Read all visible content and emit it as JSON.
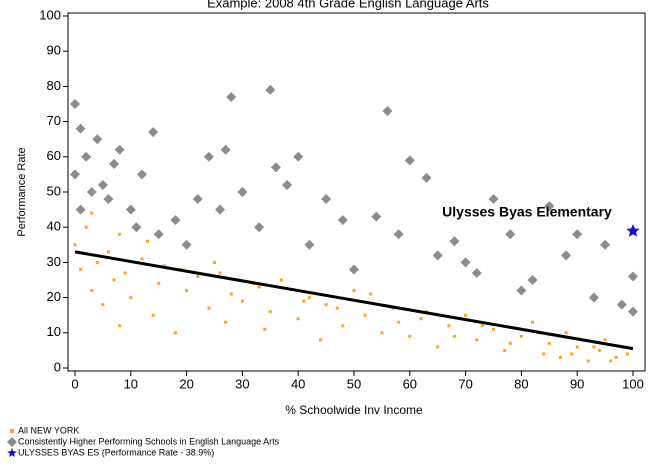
{
  "chart_data": {
    "type": "scatter",
    "title": "Example: 2008 4th Grade English Language Arts",
    "xlabel": "% Schoolwide Inv Income",
    "ylabel": "Performance Rate",
    "xlim": [
      0,
      100
    ],
    "ylim": [
      0,
      100
    ],
    "xticks": [
      0,
      10,
      20,
      30,
      40,
      50,
      60,
      70,
      80,
      90,
      100
    ],
    "yticks": [
      0,
      10,
      20,
      30,
      40,
      50,
      60,
      70,
      80,
      90,
      100
    ],
    "annotation": "Ulysses Byas Elementary",
    "series": [
      {
        "name": "All NEW YORK",
        "color": "#f5a623",
        "marker": "square",
        "x": [
          0,
          1,
          2,
          3,
          4,
          5,
          6,
          7,
          8,
          9,
          10,
          12,
          14,
          15,
          16,
          18,
          20,
          22,
          24,
          25,
          27,
          28,
          30,
          32,
          34,
          35,
          37,
          40,
          42,
          44,
          45,
          48,
          50,
          52,
          55,
          57,
          60,
          62,
          65,
          67,
          70,
          72,
          75,
          77,
          80,
          82,
          84,
          85,
          87,
          88,
          90,
          92,
          94,
          95,
          97,
          99,
          3,
          8,
          13,
          19,
          26,
          33,
          41,
          47,
          53,
          58,
          63,
          68,
          73,
          78,
          83,
          89,
          93,
          96
        ],
        "values": [
          35,
          28,
          40,
          22,
          30,
          18,
          33,
          25,
          12,
          27,
          20,
          31,
          15,
          24,
          29,
          10,
          22,
          26,
          17,
          30,
          13,
          21,
          19,
          24,
          11,
          16,
          25,
          14,
          20,
          8,
          18,
          12,
          22,
          15,
          10,
          17,
          9,
          14,
          6,
          12,
          15,
          8,
          11,
          5,
          9,
          13,
          4,
          7,
          3,
          10,
          6,
          2,
          5,
          8,
          3,
          4,
          44,
          38,
          36,
          28,
          27,
          23,
          19,
          17,
          21,
          13,
          16,
          9,
          12,
          7,
          10,
          4,
          6,
          2
        ]
      },
      {
        "name": "Consistently Higher Performing Schools in English Language Arts",
        "color": "#8c8c8c",
        "marker": "diamond",
        "x": [
          0,
          0,
          1,
          1,
          2,
          3,
          4,
          5,
          6,
          7,
          8,
          10,
          11,
          12,
          14,
          15,
          18,
          20,
          22,
          24,
          26,
          27,
          28,
          30,
          33,
          35,
          36,
          38,
          40,
          42,
          45,
          48,
          50,
          54,
          56,
          58,
          60,
          63,
          65,
          68,
          70,
          72,
          75,
          78,
          80,
          82,
          85,
          88,
          90,
          93,
          95,
          98,
          100,
          100
        ],
        "values": [
          75,
          55,
          68,
          45,
          60,
          50,
          65,
          52,
          48,
          58,
          62,
          45,
          40,
          55,
          67,
          38,
          42,
          35,
          48,
          60,
          45,
          62,
          77,
          50,
          40,
          79,
          57,
          52,
          60,
          35,
          48,
          42,
          28,
          43,
          73,
          38,
          59,
          54,
          32,
          36,
          30,
          27,
          48,
          38,
          22,
          25,
          46,
          32,
          38,
          20,
          35,
          18,
          26,
          16
        ]
      },
      {
        "name": "ULYSSES BYAS ES (Performance Rate - 38.9%)",
        "color": "#1010d0",
        "marker": "star",
        "x": [
          100
        ],
        "values": [
          38.9
        ]
      }
    ],
    "trend_line": {
      "color": "#000000",
      "x": [
        0,
        100
      ],
      "values": [
        33,
        5.5
      ]
    }
  }
}
